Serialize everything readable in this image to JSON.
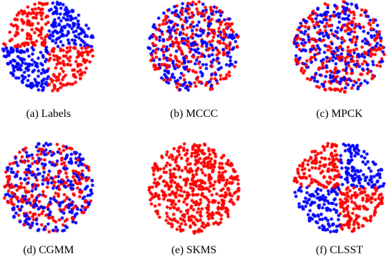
{
  "colors": {
    "blue": "#0000ff",
    "red": "#ff0000"
  },
  "panels": [
    {
      "caption": "(a) Labels",
      "pattern": "quadrants",
      "quadrant_colors": {
        "upper_left": "red",
        "upper_right": "blue",
        "lower_left": "blue",
        "lower_right": "red"
      }
    },
    {
      "caption": "(b) MCCC",
      "pattern": "mixed",
      "blue_fraction": 0.5
    },
    {
      "caption": "(c) MPCK",
      "pattern": "mixed",
      "blue_fraction": 0.5
    },
    {
      "caption": "(d) CGMM",
      "pattern": "mixed",
      "blue_fraction": 0.5
    },
    {
      "caption": "(e) SKMS",
      "pattern": "uniform",
      "color": "red"
    },
    {
      "caption": "(f) CLSST",
      "pattern": "quadrants",
      "quadrant_colors": {
        "upper_left": "red",
        "upper_right": "blue",
        "lower_left": "blue",
        "lower_right": "red"
      }
    }
  ]
}
